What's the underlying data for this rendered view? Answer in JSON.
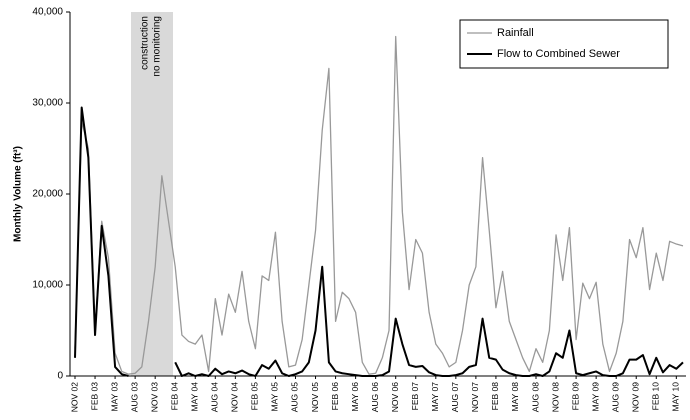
{
  "chart_data": {
    "type": "line",
    "y_label": "Monthly Volume (ft³)",
    "annotation": [
      "construction",
      "no monitoring"
    ],
    "categories": [
      "NOV 02",
      null,
      null,
      "FEB 03",
      null,
      null,
      "MAY 03",
      null,
      null,
      "AUG 03",
      null,
      null,
      "NOV 03",
      null,
      null,
      "FEB 04",
      null,
      null,
      "MAY 04",
      null,
      null,
      "AUG 04",
      null,
      null,
      "NOV 04",
      null,
      null,
      "FEB 05",
      null,
      null,
      "MAY 05",
      null,
      null,
      "AUG 05",
      null,
      null,
      "NOV 05",
      null,
      null,
      "FEB 06",
      null,
      null,
      "MAY 06",
      null,
      null,
      "AUG 06",
      null,
      null,
      "NOV 06",
      null,
      null,
      "FEB 07",
      null,
      null,
      "MAY 07",
      null,
      null,
      "AUG 07",
      null,
      null,
      "NOV 07",
      null,
      null,
      "FEB 08",
      null,
      null,
      "MAY 08",
      null,
      null,
      "AUG 08",
      null,
      null,
      "NOV 08",
      null,
      null,
      "FEB 09",
      null,
      null,
      "MAY 09",
      null,
      null,
      "AUG 09",
      null,
      null,
      "NOV 09",
      null,
      null,
      "FEB 10",
      null,
      null,
      "MAY 10",
      null
    ],
    "series": [
      {
        "name": "Rainfall",
        "color": "#999999",
        "width": 1.3,
        "values": [
          3000,
          28000,
          25000,
          5000,
          17000,
          13000,
          2500,
          500,
          200,
          300,
          1000,
          6000,
          12000,
          22000,
          17000,
          12000,
          4500,
          3800,
          3500,
          4500,
          500,
          8500,
          4500,
          9000,
          7000,
          11500,
          6000,
          3000,
          11000,
          10500,
          15800,
          6000,
          1000,
          1200,
          4000,
          10000,
          16000,
          27000,
          33800,
          6000,
          9200,
          8500,
          7000,
          1500,
          200,
          300,
          2000,
          5000,
          37300,
          18000,
          9500,
          15000,
          13500,
          7000,
          3500,
          2500,
          1000,
          1500,
          5000,
          10000,
          12000,
          24000,
          16000,
          7500,
          11500,
          6000,
          4000,
          2000,
          500,
          3000,
          1500,
          5000,
          15500,
          10500,
          16300,
          4000,
          10200,
          8500,
          10300,
          3500,
          500,
          2500,
          6000,
          15000,
          13000,
          16300,
          9500,
          13500,
          10500,
          14800,
          14500,
          14300
        ]
      },
      {
        "name": "Flow to Combined Sewer",
        "color": "#000000",
        "width": 2,
        "values": [
          2000,
          29500,
          24000,
          4500,
          16500,
          11000,
          1000,
          200,
          0,
          null,
          null,
          null,
          null,
          null,
          null,
          1500,
          0,
          300,
          0,
          200,
          0,
          800,
          200,
          500,
          300,
          600,
          200,
          0,
          1200,
          800,
          1700,
          300,
          0,
          200,
          500,
          1500,
          5000,
          12000,
          1500,
          500,
          300,
          200,
          100,
          0,
          0,
          0,
          100,
          500,
          6300,
          3500,
          1200,
          1000,
          1100,
          400,
          100,
          0,
          0,
          100,
          300,
          1000,
          1200,
          6300,
          2000,
          1800,
          700,
          300,
          100,
          0,
          0,
          200,
          0,
          500,
          2500,
          2000,
          5000,
          300,
          100,
          300,
          500,
          100,
          0,
          0,
          300,
          1800,
          1800,
          2300,
          200,
          2000,
          400,
          1200,
          800,
          1500
        ]
      }
    ],
    "ylim": [
      0,
      40000
    ],
    "yticks": [
      0,
      {
        "value": 10000,
        "label": "10,000"
      },
      {
        "value": 20000,
        "label": "20,000"
      },
      {
        "value": 30000,
        "label": "30,000"
      },
      {
        "value": 40000,
        "label": "40,000"
      }
    ],
    "legend": "top-right"
  }
}
